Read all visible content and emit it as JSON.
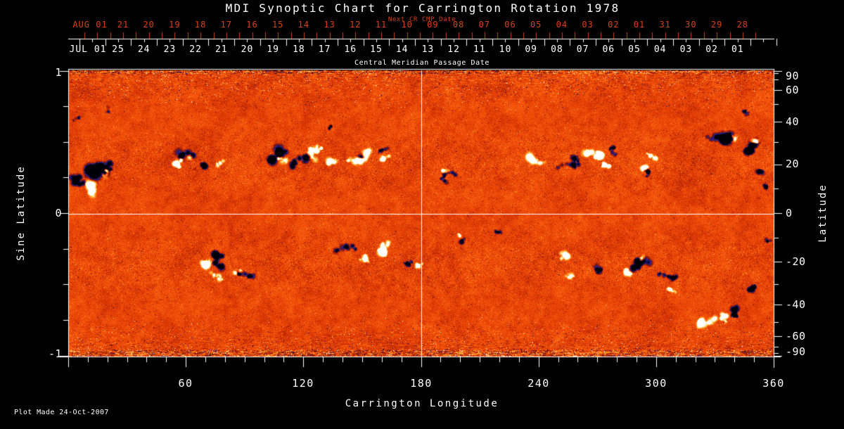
{
  "title": "MDI Synoptic Chart for Carrington Rotation 1978",
  "top_axis": {
    "label": "Next CR CMP Date",
    "month_label": "AUG 01",
    "day_labels": [
      "21",
      "20",
      "19",
      "18",
      "17",
      "16",
      "15",
      "14",
      "13",
      "12",
      "11",
      "10",
      "09",
      "08",
      "07",
      "06",
      "05",
      "04",
      "03",
      "02",
      "01",
      "31",
      "30",
      "29",
      "28"
    ],
    "color": "#da4014"
  },
  "cmp_axis": {
    "label": "Central Meridian Passage Date",
    "month_label": "JUL 01",
    "day_labels": [
      "25",
      "24",
      "23",
      "22",
      "21",
      "20",
      "19",
      "18",
      "17",
      "16",
      "15",
      "14",
      "13",
      "12",
      "11",
      "10",
      "09",
      "08",
      "07",
      "06",
      "05",
      "04",
      "03",
      "02",
      "01"
    ]
  },
  "left_axis": {
    "label": "Sine Latitude",
    "tick_labels": [
      "1",
      "0",
      "-1"
    ]
  },
  "right_axis": {
    "label": "Latitude",
    "tick_labels": [
      "90",
      "60",
      "40",
      "20",
      "0",
      "-20",
      "-40",
      "-60",
      "-90"
    ]
  },
  "bottom_axis": {
    "label": "Carrington Longitude",
    "tick_labels": [
      "60",
      "120",
      "180",
      "240",
      "300",
      "360"
    ]
  },
  "footer": {
    "plot_made": "Plot Made 24-Oct-2007"
  },
  "chart_data": {
    "type": "heatmap",
    "title": "MDI Synoptic Chart for Carrington Rotation 1978",
    "xlabel": "Carrington Longitude",
    "ylabel_left": "Sine Latitude",
    "ylabel_right": "Latitude",
    "x_range": [
      0,
      360
    ],
    "x_major_ticks": [
      60,
      120,
      180,
      240,
      300,
      360
    ],
    "x_minor_tick_step": 10,
    "sine_latitude_range": [
      -1,
      1
    ],
    "sine_latitude_major_ticks": [
      1,
      0,
      -1
    ],
    "sine_latitude_minor_tick_step": 0.25,
    "latitude_labeled_ticks": [
      90,
      60,
      40,
      20,
      0,
      -20,
      -40,
      -60,
      -90
    ],
    "crosshair": {
      "longitude": 180,
      "sine_latitude": 0
    },
    "background_color": "#000000",
    "noise_seed": 1978,
    "palette_stops": [
      [
        0.0,
        "#000008"
      ],
      [
        0.06,
        "#101070"
      ],
      [
        0.13,
        "#2828a0"
      ],
      [
        0.2,
        "#401858"
      ],
      [
        0.28,
        "#7a1404"
      ],
      [
        0.38,
        "#b52604"
      ],
      [
        0.47,
        "#e33c06"
      ],
      [
        0.53,
        "#f04f0a"
      ],
      [
        0.6,
        "#fa6410"
      ],
      [
        0.7,
        "#fe8c22"
      ],
      [
        0.79,
        "#ffb83c"
      ],
      [
        0.87,
        "#ffe07a"
      ],
      [
        0.93,
        "#fff5c8"
      ],
      [
        1.0,
        "#ffffff"
      ]
    ],
    "field_description": "Solar photospheric magnetogram: mottled orange-red quiet-sun noise, bipolar active regions (white/yellow = positive, black/navy = negative) in belts near ±20-35 deg latitude, horizontally streaked noise toward both poles.",
    "active_regions": [
      [
        8,
        0.24,
        10,
        -1.2
      ],
      [
        14,
        0.3,
        14,
        -1.3
      ],
      [
        22,
        0.33,
        8,
        -1.0
      ],
      [
        57,
        0.38,
        11,
        -1.2
      ],
      [
        68,
        0.36,
        7,
        -0.9
      ],
      [
        112,
        0.42,
        13,
        -1.3
      ],
      [
        120,
        0.4,
        9,
        -1.1
      ],
      [
        150,
        0.4,
        8,
        -1.0
      ],
      [
        160,
        0.45,
        6,
        -0.8
      ],
      [
        196,
        0.28,
        6,
        -0.9
      ],
      [
        249,
        0.33,
        8,
        -1.0
      ],
      [
        277,
        0.4,
        7,
        -1.0
      ],
      [
        295,
        0.3,
        5,
        -0.8
      ],
      [
        340,
        0.5,
        12,
        -1.3
      ],
      [
        348,
        0.42,
        10,
        -1.2
      ],
      [
        354,
        0.3,
        7,
        -0.9
      ],
      [
        357,
        0.18,
        6,
        -0.9
      ],
      [
        80,
        -0.37,
        13,
        -1.4
      ],
      [
        93,
        -0.45,
        7,
        -0.9
      ],
      [
        146,
        -0.23,
        9,
        -1.1
      ],
      [
        172,
        -0.35,
        5,
        -0.8
      ],
      [
        203,
        -0.17,
        6,
        -0.9
      ],
      [
        221,
        -0.12,
        5,
        -0.8
      ],
      [
        270,
        -0.4,
        9,
        -1.1
      ],
      [
        296,
        -0.36,
        11,
        -1.2
      ],
      [
        308,
        -0.44,
        7,
        -1.0
      ],
      [
        341,
        -0.71,
        8,
        -1.1
      ],
      [
        352,
        -0.5,
        7,
        -0.9
      ],
      [
        358,
        -0.2,
        6,
        -0.9
      ],
      [
        5,
        0.68,
        5,
        -0.6
      ],
      [
        20,
        0.72,
        4,
        -0.5
      ],
      [
        135,
        0.6,
        4,
        -0.5
      ],
      [
        345,
        0.7,
        5,
        -0.6
      ],
      [
        10,
        0.2,
        9,
        1.2
      ],
      [
        18,
        0.26,
        7,
        1.0
      ],
      [
        55,
        0.34,
        7,
        1.0
      ],
      [
        64,
        0.4,
        8,
        1.1
      ],
      [
        76,
        0.33,
        6,
        0.9
      ],
      [
        109,
        0.38,
        7,
        1.0
      ],
      [
        128,
        0.43,
        10,
        1.2
      ],
      [
        136,
        0.36,
        9,
        1.1
      ],
      [
        155,
        0.43,
        9,
        1.2
      ],
      [
        162,
        0.38,
        6,
        0.9
      ],
      [
        192,
        0.3,
        5,
        0.8
      ],
      [
        236,
        0.41,
        10,
        1.3
      ],
      [
        244,
        0.35,
        6,
        0.9
      ],
      [
        265,
        0.41,
        10,
        1.3
      ],
      [
        272,
        0.35,
        6,
        1.0
      ],
      [
        294,
        0.33,
        7,
        1.1
      ],
      [
        300,
        0.38,
        5,
        0.8
      ],
      [
        336,
        0.55,
        6,
        0.8
      ],
      [
        352,
        0.47,
        7,
        0.9
      ],
      [
        69,
        -0.33,
        9,
        1.2
      ],
      [
        75,
        -0.42,
        6,
        0.9
      ],
      [
        88,
        -0.4,
        5,
        0.8
      ],
      [
        161,
        -0.28,
        10,
        1.3
      ],
      [
        152,
        -0.33,
        6,
        0.9
      ],
      [
        178,
        -0.36,
        5,
        0.8
      ],
      [
        200,
        -0.15,
        5,
        0.8
      ],
      [
        252,
        -0.33,
        9,
        1.2
      ],
      [
        258,
        -0.42,
        6,
        0.9
      ],
      [
        287,
        -0.4,
        7,
        1.0
      ],
      [
        292,
        -0.3,
        5,
        0.8
      ],
      [
        325,
        -0.73,
        10,
        1.3
      ],
      [
        334,
        -0.7,
        7,
        1.0
      ],
      [
        307,
        -0.52,
        5,
        0.8
      ]
    ]
  }
}
